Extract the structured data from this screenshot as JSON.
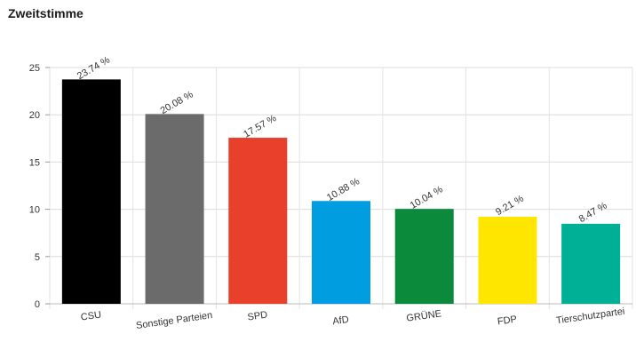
{
  "chart_data": {
    "type": "bar",
    "title": "Zweitstimme",
    "categories": [
      "CSU",
      "Sonstige Parteien",
      "SPD",
      "AfD",
      "GRÜNE",
      "FDP",
      "Tierschutzpartei"
    ],
    "values": [
      23.74,
      20.08,
      17.57,
      10.88,
      10.04,
      9.21,
      8.47
    ],
    "value_labels": [
      "23.74 %",
      "20.08 %",
      "17.57 %",
      "10.88 %",
      "10.04 %",
      "9.21 %",
      "8.47 %"
    ],
    "colors": [
      "#000000",
      "#6b6b6b",
      "#e8402a",
      "#009ee0",
      "#0a8a3a",
      "#ffe600",
      "#00b096"
    ],
    "ylim": [
      0,
      25
    ],
    "yticks": [
      "0",
      "5",
      "10",
      "15",
      "20",
      "25"
    ],
    "grid": true,
    "xlabel": "",
    "ylabel": ""
  }
}
